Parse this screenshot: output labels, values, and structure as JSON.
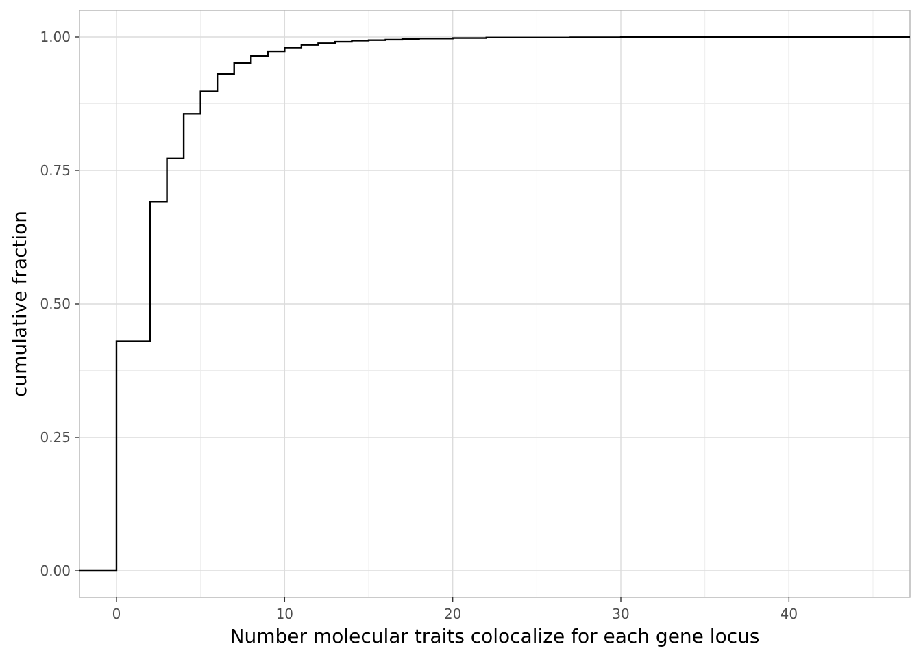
{
  "chart_data": {
    "type": "line",
    "subtype": "step (empirical cumulative distribution)",
    "title": "",
    "xlabel": "Number molecular traits colocalize for each gene locus",
    "ylabel": "cumulative fraction",
    "xlim": [
      -2.2,
      47.2
    ],
    "ylim": [
      -0.05,
      1.05
    ],
    "x_ticks": [
      0,
      10,
      20,
      30,
      40
    ],
    "x_tick_labels": [
      "0",
      "10",
      "20",
      "30",
      "40"
    ],
    "y_ticks": [
      0,
      0.25,
      0.5,
      0.75,
      1
    ],
    "y_tick_labels": [
      "0.00",
      "0.25",
      "0.50",
      "0.75",
      "1.00"
    ],
    "grid": true,
    "legend": "none",
    "line_color": "#000000",
    "series": [
      {
        "x": [
          0,
          2,
          3,
          4,
          5,
          6,
          7,
          8,
          9,
          10,
          11,
          12,
          13,
          14,
          15,
          16,
          17,
          18,
          19,
          20,
          22,
          24,
          27,
          30,
          35,
          40,
          47
        ],
        "y": [
          0.43,
          0.692,
          0.772,
          0.856,
          0.898,
          0.931,
          0.951,
          0.964,
          0.973,
          0.98,
          0.985,
          0.988,
          0.991,
          0.993,
          0.994,
          0.995,
          0.996,
          0.997,
          0.997,
          0.998,
          0.999,
          0.999,
          0.9995,
          0.9997,
          0.9998,
          0.9999,
          1.0
        ]
      }
    ]
  }
}
